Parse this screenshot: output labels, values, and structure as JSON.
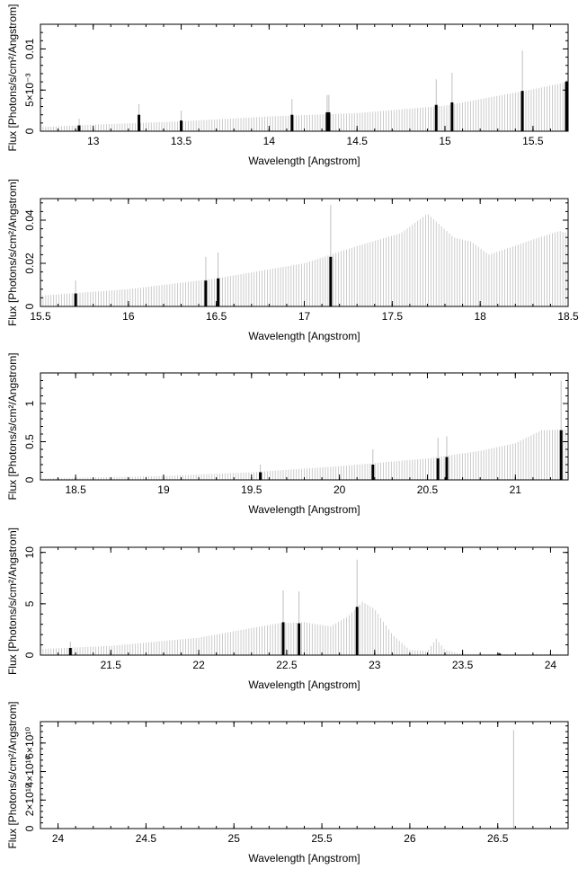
{
  "figure": {
    "background": "#ffffff",
    "line_color": "#bfbfbf",
    "highlight_color": "#000000"
  },
  "chart_data": [
    {
      "type": "bar",
      "xlabel": "Wavelength [Angstrom]",
      "ylabel": "Flux [Photons/s/cm²/Angstrom]",
      "xlim": [
        12.7,
        15.7
      ],
      "ylim": [
        0,
        0.013
      ],
      "xticks": [
        13,
        13.5,
        14,
        14.5,
        15,
        15.5
      ],
      "xtick_labels": [
        "13",
        "13.5",
        "14",
        "14.5",
        "15",
        "15.5"
      ],
      "yticks": [
        0,
        0.005,
        0.01
      ],
      "ytick_labels": [
        "0",
        "5×10⁻³",
        "0.01"
      ],
      "continuum": [
        [
          12.7,
          0.0005
        ],
        [
          13.0,
          0.0008
        ],
        [
          13.5,
          0.0012
        ],
        [
          14.0,
          0.0018
        ],
        [
          14.5,
          0.0022
        ],
        [
          15.0,
          0.0031
        ],
        [
          15.5,
          0.0051
        ],
        [
          15.7,
          0.006
        ]
      ],
      "continuum_step": 0.015,
      "lines": [
        {
          "x": 12.92,
          "value": 0.0007,
          "upper": 0.0015
        },
        {
          "x": 13.26,
          "value": 0.002,
          "upper": 0.0033
        },
        {
          "x": 13.5,
          "value": 0.0013,
          "upper": 0.0025
        },
        {
          "x": 14.13,
          "value": 0.002,
          "upper": 0.0039
        },
        {
          "x": 14.33,
          "value": 0.0023,
          "upper": 0.0044
        },
        {
          "x": 14.34,
          "value": 0.0023,
          "upper": 0.0044
        },
        {
          "x": 14.95,
          "value": 0.0032,
          "upper": 0.0063
        },
        {
          "x": 15.04,
          "value": 0.0035,
          "upper": 0.0071
        },
        {
          "x": 15.44,
          "value": 0.0049,
          "upper": 0.0098
        },
        {
          "x": 15.69,
          "value": 0.006,
          "upper": 0.0062
        }
      ]
    },
    {
      "type": "bar",
      "xlabel": "Wavelength [Angstrom]",
      "ylabel": "Flux [Photons/s/cm²/Angstrom]",
      "xlim": [
        15.5,
        18.5
      ],
      "ylim": [
        0,
        0.05
      ],
      "xticks": [
        15.5,
        16,
        16.5,
        17,
        17.5,
        18,
        18.5
      ],
      "xtick_labels": [
        "15.5",
        "16",
        "16.5",
        "17",
        "17.5",
        "18",
        "18.5"
      ],
      "yticks": [
        0,
        0.02,
        0.04
      ],
      "ytick_labels": [
        "0",
        "0.02",
        "0.04"
      ],
      "continuum": [
        [
          15.5,
          0.005
        ],
        [
          16.0,
          0.008
        ],
        [
          16.5,
          0.013
        ],
        [
          17.0,
          0.02
        ],
        [
          17.3,
          0.028
        ],
        [
          17.55,
          0.034
        ],
        [
          17.7,
          0.043
        ],
        [
          17.85,
          0.032
        ],
        [
          17.95,
          0.03
        ],
        [
          18.05,
          0.024
        ],
        [
          18.3,
          0.031
        ],
        [
          18.45,
          0.035
        ],
        [
          18.5,
          0.034
        ]
      ],
      "continuum_step": 0.015,
      "lines": [
        {
          "x": 15.7,
          "value": 0.006,
          "upper": 0.012
        },
        {
          "x": 16.44,
          "value": 0.012,
          "upper": 0.023
        },
        {
          "x": 16.51,
          "value": 0.013,
          "upper": 0.025
        },
        {
          "x": 17.15,
          "value": 0.023,
          "upper": 0.047
        }
      ]
    },
    {
      "type": "bar",
      "xlabel": "Wavelength [Angstrom]",
      "ylabel": "Flux [Photons/s/cm²/Angstrom]",
      "xlim": [
        18.3,
        21.3
      ],
      "ylim": [
        0,
        1.4
      ],
      "xticks": [
        18.5,
        19,
        19.5,
        20,
        20.5,
        21
      ],
      "xtick_labels": [
        "18.5",
        "19",
        "19.5",
        "20",
        "20.5",
        "21"
      ],
      "yticks": [
        0,
        0.5,
        1
      ],
      "ytick_labels": [
        "0",
        "0.5",
        "1"
      ],
      "continuum": [
        [
          18.3,
          0.02
        ],
        [
          19.0,
          0.05
        ],
        [
          19.5,
          0.1
        ],
        [
          20.0,
          0.18
        ],
        [
          20.5,
          0.28
        ],
        [
          20.8,
          0.38
        ],
        [
          21.0,
          0.48
        ],
        [
          21.15,
          0.65
        ],
        [
          21.3,
          0.66
        ]
      ],
      "continuum_step": 0.015,
      "lines": [
        {
          "x": 19.55,
          "value": 0.1,
          "upper": 0.2
        },
        {
          "x": 20.19,
          "value": 0.2,
          "upper": 0.4
        },
        {
          "x": 20.56,
          "value": 0.28,
          "upper": 0.55
        },
        {
          "x": 20.61,
          "value": 0.3,
          "upper": 0.57
        },
        {
          "x": 21.26,
          "value": 0.65,
          "upper": 1.3
        }
      ]
    },
    {
      "type": "bar",
      "xlabel": "Wavelength [Angstrom]",
      "ylabel": "Flux [Photons/s/cm²/Angstrom]",
      "xlim": [
        21.1,
        24.1
      ],
      "ylim": [
        0,
        10.5
      ],
      "xticks": [
        21.5,
        22,
        22.5,
        23,
        23.5,
        24
      ],
      "xtick_labels": [
        "21.5",
        "22",
        "22.5",
        "23",
        "23.5",
        "24"
      ],
      "yticks": [
        0,
        5,
        10
      ],
      "ytick_labels": [
        "0",
        "5",
        "10"
      ],
      "continuum": [
        [
          21.1,
          0.6
        ],
        [
          21.5,
          0.9
        ],
        [
          22.0,
          1.7
        ],
        [
          22.45,
          3.1
        ],
        [
          22.6,
          3.2
        ],
        [
          22.75,
          2.8
        ],
        [
          22.85,
          3.8
        ],
        [
          22.93,
          5.2
        ],
        [
          23.0,
          4.5
        ],
        [
          23.1,
          2.0
        ],
        [
          23.2,
          0.5
        ],
        [
          23.3,
          0.4
        ],
        [
          23.35,
          1.6
        ],
        [
          23.4,
          0.5
        ],
        [
          23.5,
          0.1
        ],
        [
          24.1,
          0.1
        ]
      ],
      "continuum_step": 0.015,
      "lines": [
        {
          "x": 21.27,
          "value": 0.7,
          "upper": 1.3
        },
        {
          "x": 22.48,
          "value": 3.2,
          "upper": 6.3
        },
        {
          "x": 22.57,
          "value": 3.1,
          "upper": 6.2
        },
        {
          "x": 22.9,
          "value": 4.7,
          "upper": 9.3
        },
        {
          "x": 23.71,
          "value": 0.15,
          "upper": 0.3
        }
      ]
    },
    {
      "type": "bar",
      "xlabel": "Wavelength [Angstrom]",
      "ylabel": "Flux [Photons/s/cm²/Angstrom]",
      "xlim": [
        23.9,
        26.9
      ],
      "ylim": [
        0,
        75000000000.0
      ],
      "xticks": [
        24,
        24.5,
        25,
        25.5,
        26,
        26.5
      ],
      "xtick_labels": [
        "24",
        "24.5",
        "25",
        "25.5",
        "26",
        "26.5"
      ],
      "yticks": [
        0,
        20000000000.0,
        40000000000.0,
        60000000000.0
      ],
      "ytick_labels": [
        "0",
        "2×10¹⁰",
        "4×10¹⁰",
        "6×10¹⁰"
      ],
      "continuum": [
        [
          23.9,
          0
        ],
        [
          26.9,
          0
        ]
      ],
      "continuum_step": 1.0,
      "lines": [
        {
          "x": 26.59,
          "value": 0,
          "upper": 69000000000.0,
          "thin": true
        }
      ]
    }
  ]
}
